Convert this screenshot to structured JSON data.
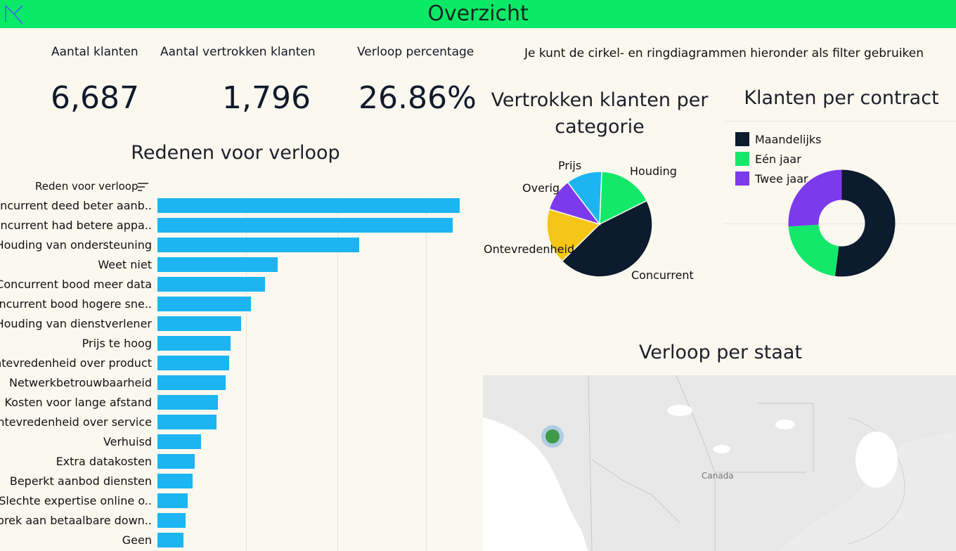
{
  "header": {
    "title": "Overzicht"
  },
  "kpis": [
    {
      "label": "Aantal klanten",
      "value": "6,687"
    },
    {
      "label": "Aantal vertrokken klanten",
      "value": "1,796"
    },
    {
      "label": "Verloop percentage",
      "value": "26.86%"
    }
  ],
  "filter_note": "Je kunt de cirkel- en ringdiagrammen hieronder als filter gebruiken",
  "reasons": {
    "title": "Redenen voor verloop",
    "axis_title": "Reden voor verloop"
  },
  "category_pie": {
    "title_line1": "Vertrokken klanten per",
    "title_line2": "categorie"
  },
  "contract_donut": {
    "title": "Klanten per contract"
  },
  "map": {
    "title": "Verloop per staat",
    "country_label": "Canada"
  },
  "chart_data": [
    {
      "type": "bar",
      "orientation": "horizontal",
      "ylabel": "Reden voor verloop",
      "categories": [
        "Concurrent deed beter aanb..",
        "Concurrent had betere appa..",
        "Houding van ondersteuning",
        "Weet niet",
        "Concurrent bood meer data",
        "Concurrent bood hogere sne..",
        "Houding van dienstverlener",
        "Prijs te hoog",
        "Ontevredenheid over product",
        "Netwerkbetrouwbaarheid",
        "Kosten voor lange afstand",
        "Ontevredenheid over service",
        "Verhuisd",
        "Extra datakosten",
        "Beperkt aanbod diensten",
        "Slechte expertise online o..",
        "Gebrek aan betaalbare down..",
        "Geen"
      ],
      "values": [
        311,
        304,
        208,
        124,
        111,
        96,
        86,
        75,
        74,
        70,
        62,
        61,
        45,
        38,
        36,
        31,
        29,
        27
      ],
      "xlim": [
        0,
        330
      ],
      "grid": true
    },
    {
      "type": "pie",
      "slices": [
        {
          "name": "Concurrent",
          "value": 45,
          "color": "#0c1b2e"
        },
        {
          "name": "Houding",
          "value": 17,
          "color": "#14e86a"
        },
        {
          "name": "Prijs",
          "value": 11,
          "color": "#1cb5f2"
        },
        {
          "name": "Overig",
          "value": 10,
          "color": "#7c3aed"
        },
        {
          "name": "Ontevredenheid",
          "value": 17,
          "color": "#f5c518"
        }
      ]
    },
    {
      "type": "pie",
      "variant": "donut",
      "legend_position": "top-left",
      "slices": [
        {
          "name": "Maandelijks",
          "value": 52,
          "color": "#0c1b2e"
        },
        {
          "name": "Eén jaar",
          "value": 22,
          "color": "#14e86a"
        },
        {
          "name": "Twee jaar",
          "value": 26,
          "color": "#7c3aed"
        }
      ]
    }
  ],
  "colors": {
    "header": "#0bea66",
    "bar": "#1cb5f2",
    "map_point": "#3f9a47"
  }
}
